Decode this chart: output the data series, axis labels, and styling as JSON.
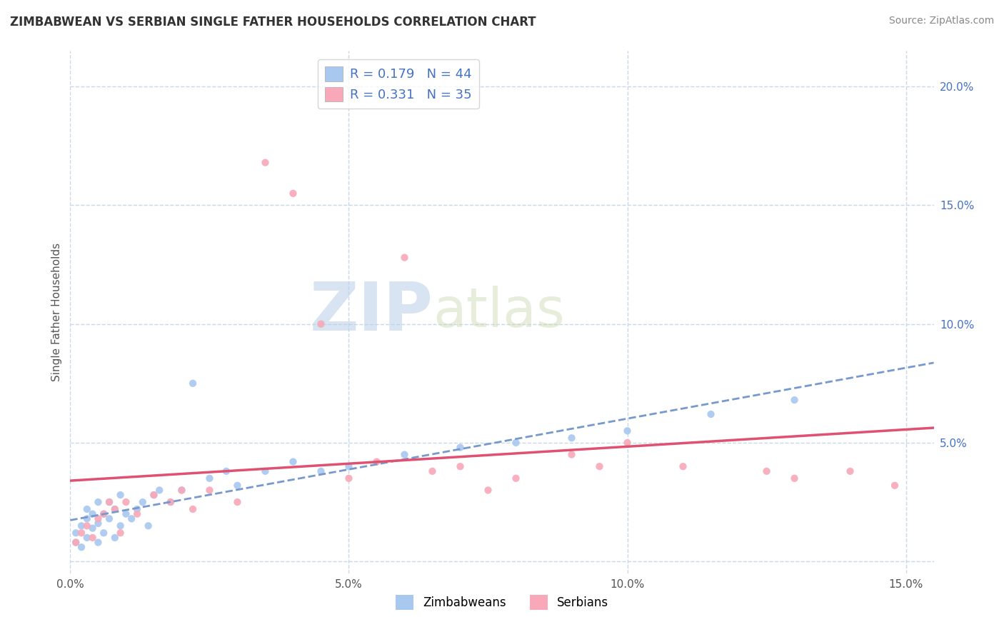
{
  "title": "ZIMBABWEAN VS SERBIAN SINGLE FATHER HOUSEHOLDS CORRELATION CHART",
  "source": "Source: ZipAtlas.com",
  "ylabel": "Single Father Households",
  "xlim": [
    0.0,
    0.155
  ],
  "ylim": [
    -0.005,
    0.215
  ],
  "x_ticks": [
    0.0,
    0.05,
    0.1,
    0.15
  ],
  "x_tick_labels": [
    "0.0%",
    "5.0%",
    "10.0%",
    "15.0%"
  ],
  "y_ticks": [
    0.0,
    0.05,
    0.1,
    0.15,
    0.2
  ],
  "y_tick_labels": [
    "",
    "5.0%",
    "10.0%",
    "15.0%",
    "20.0%"
  ],
  "zim_color": "#a8c8f0",
  "serb_color": "#f8a8b8",
  "zim_line_color": "#7799cc",
  "serb_line_color": "#e05070",
  "R_zim": 0.179,
  "N_zim": 44,
  "R_serb": 0.331,
  "N_serb": 35,
  "legend_label_zim": "Zimbabweans",
  "legend_label_serb": "Serbians",
  "watermark_zip": "ZIP",
  "watermark_atlas": "atlas",
  "background_color": "#ffffff",
  "grid_color": "#c8d8e8",
  "tick_color": "#4472c4",
  "title_color": "#333333",
  "zim_x": [
    0.001,
    0.001,
    0.002,
    0.002,
    0.003,
    0.003,
    0.003,
    0.004,
    0.004,
    0.005,
    0.005,
    0.005,
    0.006,
    0.006,
    0.007,
    0.007,
    0.008,
    0.008,
    0.009,
    0.009,
    0.01,
    0.011,
    0.012,
    0.013,
    0.014,
    0.015,
    0.016,
    0.018,
    0.02,
    0.022,
    0.025,
    0.028,
    0.03,
    0.035,
    0.04,
    0.045,
    0.05,
    0.06,
    0.07,
    0.08,
    0.09,
    0.1,
    0.115,
    0.13
  ],
  "zim_y": [
    0.008,
    0.012,
    0.006,
    0.015,
    0.01,
    0.018,
    0.022,
    0.014,
    0.02,
    0.008,
    0.016,
    0.025,
    0.012,
    0.02,
    0.018,
    0.025,
    0.01,
    0.022,
    0.015,
    0.028,
    0.02,
    0.018,
    0.022,
    0.025,
    0.015,
    0.028,
    0.03,
    0.025,
    0.03,
    0.075,
    0.035,
    0.038,
    0.032,
    0.038,
    0.042,
    0.038,
    0.04,
    0.045,
    0.048,
    0.05,
    0.052,
    0.055,
    0.062,
    0.068
  ],
  "serb_x": [
    0.001,
    0.002,
    0.003,
    0.004,
    0.005,
    0.006,
    0.007,
    0.008,
    0.009,
    0.01,
    0.012,
    0.015,
    0.018,
    0.02,
    0.022,
    0.025,
    0.03,
    0.035,
    0.04,
    0.045,
    0.05,
    0.055,
    0.06,
    0.065,
    0.07,
    0.075,
    0.08,
    0.09,
    0.095,
    0.1,
    0.11,
    0.125,
    0.13,
    0.14,
    0.148
  ],
  "serb_y": [
    0.008,
    0.012,
    0.015,
    0.01,
    0.018,
    0.02,
    0.025,
    0.022,
    0.012,
    0.025,
    0.02,
    0.028,
    0.025,
    0.03,
    0.022,
    0.03,
    0.025,
    0.168,
    0.155,
    0.1,
    0.035,
    0.042,
    0.128,
    0.038,
    0.04,
    0.03,
    0.035,
    0.045,
    0.04,
    0.05,
    0.04,
    0.038,
    0.035,
    0.038,
    0.032
  ]
}
